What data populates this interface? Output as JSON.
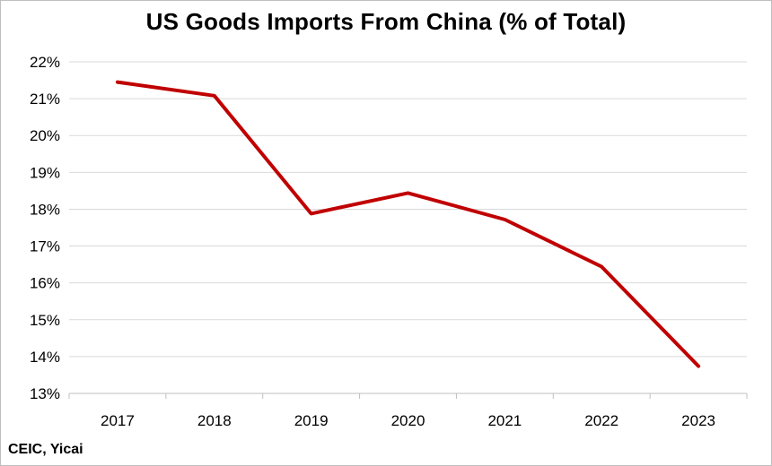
{
  "chart_data": {
    "type": "line",
    "title": "US Goods Imports From China (% of Total)",
    "xlabel": "",
    "ylabel": "",
    "categories": [
      "2017",
      "2018",
      "2019",
      "2020",
      "2021",
      "2022",
      "2023"
    ],
    "series": [
      {
        "values": [
          21.45,
          21.08,
          17.88,
          18.44,
          17.72,
          16.44,
          13.74
        ],
        "color": "#c00000"
      }
    ],
    "ylim": [
      13,
      22
    ],
    "y_ticks": [
      13,
      14,
      15,
      16,
      17,
      18,
      19,
      20,
      21,
      22
    ],
    "y_tick_labels": [
      "13%",
      "14%",
      "15%",
      "16%",
      "17%",
      "18%",
      "19%",
      "20%",
      "21%",
      "22%"
    ],
    "grid": true,
    "legend": "none",
    "source": "CEIC, Yicai",
    "gridline_color": "#d9d9d9",
    "axis_color": "#bfbfbf"
  }
}
